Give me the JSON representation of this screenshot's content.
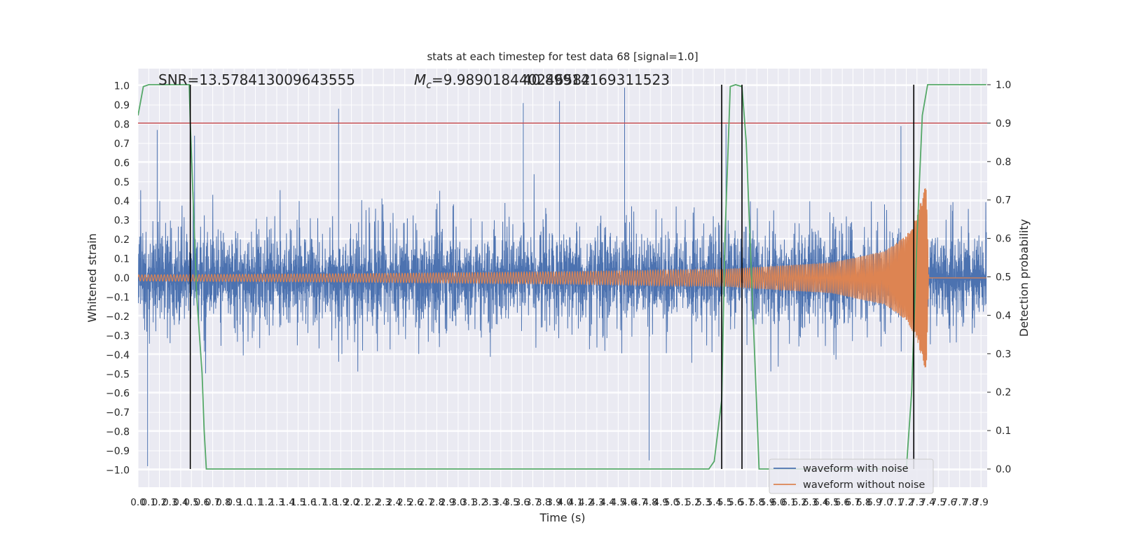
{
  "chart_data": {
    "type": "line",
    "title": "stats at each timestep for test data 68 [signal=1.0]",
    "xlabel": "Time (s)",
    "ylabel": "Whitened strain",
    "y2label": "Detection probability",
    "annotation_snr": "SNR=13.578413009643555",
    "annotation_mc_prefix": "M",
    "annotation_mc_sub": "c",
    "annotation_mc_rest": "=9.989018440246582",
    "annotation_mc_overlap": "40.89914169311523",
    "xlim": [
      0.0,
      7.95
    ],
    "ylim": [
      -1.08,
      1.1
    ],
    "y2lim": [
      -0.04,
      1.04
    ],
    "grid": true,
    "legend_position": "lower-right",
    "x_ticks": [
      "0.0",
      "0.1",
      "0.2",
      "0.3",
      "0.4",
      "0.5",
      "0.6",
      "0.7",
      "0.8",
      "0.9",
      "1.0",
      "1.1",
      "1.2",
      "1.3",
      "1.4",
      "1.5",
      "1.6",
      "1.7",
      "1.8",
      "1.9",
      "2.0",
      "2.1",
      "2.2",
      "2.3",
      "2.4",
      "2.5",
      "2.6",
      "2.7",
      "2.8",
      "2.9",
      "3.0",
      "3.1",
      "3.2",
      "3.3",
      "3.4",
      "3.5",
      "3.6",
      "3.7",
      "3.8",
      "3.9",
      "4.0",
      "4.1",
      "4.2",
      "4.3",
      "4.4",
      "4.5",
      "4.6",
      "4.7",
      "4.8",
      "4.9",
      "5.0",
      "5.1",
      "5.2",
      "5.3",
      "5.4",
      "5.5",
      "5.6",
      "5.7",
      "5.8",
      "5.9",
      "6.0",
      "6.1",
      "6.2",
      "6.3",
      "6.4",
      "6.5",
      "6.6",
      "6.7",
      "6.8",
      "6.9",
      "7.0",
      "7.1",
      "7.2",
      "7.3",
      "7.4",
      "7.5",
      "7.6",
      "7.7",
      "7.8",
      "7.9"
    ],
    "y_ticks": [
      "1.0",
      "0.9",
      "0.8",
      "0.7",
      "0.6",
      "0.5",
      "0.4",
      "0.3",
      "0.2",
      "0.1",
      "0.0",
      "−0.1",
      "−0.2",
      "−0.3",
      "−0.4",
      "−0.5",
      "−0.6",
      "−0.7",
      "−0.8",
      "−0.9",
      "−1.0"
    ],
    "y2_ticks": [
      "1.0",
      "0.9",
      "0.8",
      "0.7",
      "0.6",
      "0.5",
      "0.4",
      "0.3",
      "0.2",
      "0.1",
      "0.0"
    ],
    "threshold": {
      "value": 0.9,
      "axis": "right",
      "color": "#c44e52"
    },
    "vertical_markers": [
      0.49,
      5.47,
      5.66,
      7.27
    ],
    "noise_envelope": {
      "typical_peak": 0.55,
      "max_peak": 1.0
    },
    "series": [
      {
        "name": "waveform with noise",
        "color": "#4c72b0",
        "axis": "left",
        "x_range": [
          0.0,
          7.95
        ],
        "peaks": [
          {
            "t": 0.09,
            "v": -0.98
          },
          {
            "t": 0.18,
            "v": 0.77
          },
          {
            "t": 0.53,
            "v": 0.74
          },
          {
            "t": 1.88,
            "v": 0.88
          },
          {
            "t": 3.61,
            "v": 0.91
          },
          {
            "t": 3.95,
            "v": 0.92
          },
          {
            "t": 4.56,
            "v": 0.99
          },
          {
            "t": 4.79,
            "v": -0.95
          },
          {
            "t": 5.51,
            "v": 0.8
          },
          {
            "t": 7.15,
            "v": 0.79
          }
        ]
      },
      {
        "name": "waveform without noise",
        "color": "#dd8452",
        "axis": "left",
        "x_range": [
          0.0,
          7.95
        ],
        "amplitude_envelope": [
          [
            0.0,
            0.016
          ],
          [
            2.0,
            0.022
          ],
          [
            4.0,
            0.032
          ],
          [
            5.5,
            0.045
          ],
          [
            6.5,
            0.08
          ],
          [
            7.0,
            0.14
          ],
          [
            7.2,
            0.22
          ],
          [
            7.3,
            0.32
          ],
          [
            7.37,
            0.48
          ],
          [
            7.39,
            0.5
          ],
          [
            7.41,
            0.0
          ],
          [
            7.95,
            0.0
          ]
        ],
        "frequency_hz": [
          [
            0.0,
            33
          ],
          [
            5.0,
            42
          ],
          [
            7.0,
            72
          ],
          [
            7.4,
            130
          ]
        ]
      },
      {
        "name": "detection probability",
        "color": "#55a868",
        "axis": "right",
        "x": [
          0.0,
          0.05,
          0.1,
          0.15,
          0.3,
          0.48,
          0.49,
          0.55,
          0.6,
          0.62,
          0.64,
          0.7,
          5.35,
          5.4,
          5.47,
          5.5,
          5.55,
          5.6,
          5.66,
          5.7,
          5.75,
          5.8,
          5.82,
          5.85,
          6.0,
          7.2,
          7.25,
          7.3,
          7.35,
          7.4,
          7.95
        ],
        "y": [
          0.92,
          0.995,
          1.0,
          1.0,
          1.0,
          1.0,
          0.9,
          0.45,
          0.25,
          0.1,
          0.0,
          0.0,
          0.0,
          0.02,
          0.18,
          0.6,
          0.995,
          1.0,
          0.995,
          0.85,
          0.5,
          0.15,
          0.0,
          0.0,
          0.0,
          0.0,
          0.2,
          0.6,
          0.92,
          1.0,
          1.0
        ]
      }
    ]
  }
}
